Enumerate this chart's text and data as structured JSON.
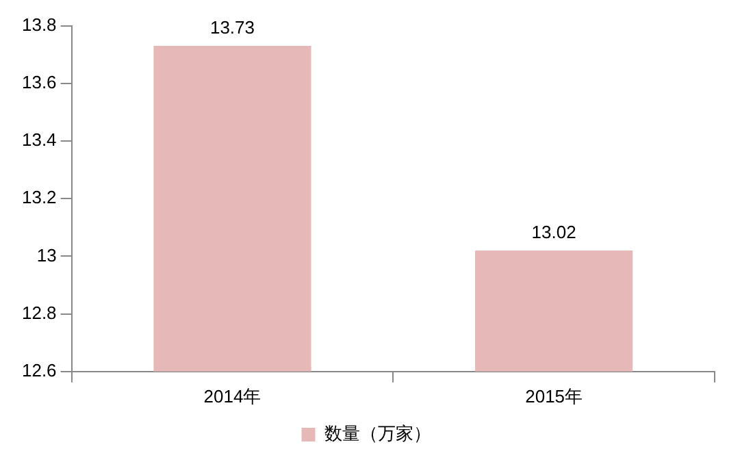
{
  "chart_data": {
    "type": "bar",
    "categories": [
      "2014年",
      "2015年"
    ],
    "series": [
      {
        "name": "数量（万家）",
        "color": "#e6b9b8",
        "values": [
          13.73,
          13.02
        ]
      }
    ],
    "ylim": [
      12.6,
      13.8
    ],
    "yticks": [
      12.6,
      12.8,
      13,
      13.2,
      13.4,
      13.6,
      13.8
    ],
    "grid": false,
    "legend": "bottom",
    "data_labels": true
  }
}
